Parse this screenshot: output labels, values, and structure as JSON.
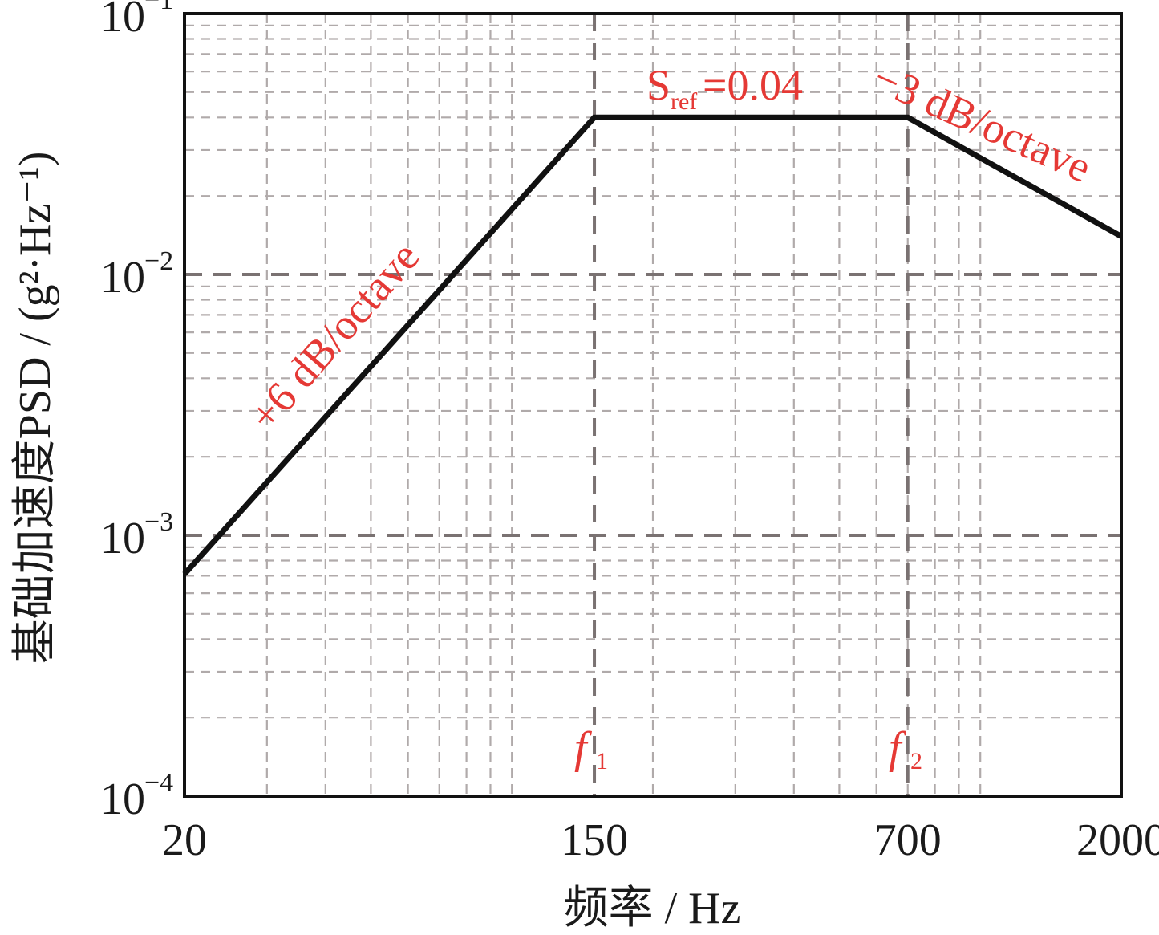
{
  "chart_data": {
    "type": "line",
    "x_scale": "log",
    "y_scale": "log",
    "xlim": [
      20,
      2000
    ],
    "ylim": [
      0.0001,
      0.1
    ],
    "x_ticks": [
      "20",
      "150",
      "700",
      "2000"
    ],
    "x_tick_values": [
      20,
      150,
      700,
      2000
    ],
    "y_ticks": [
      {
        "base": "10",
        "exp": "−4",
        "value": 0.0001
      },
      {
        "base": "10",
        "exp": "−3",
        "value": 0.001
      },
      {
        "base": "10",
        "exp": "−2",
        "value": 0.01
      },
      {
        "base": "10",
        "exp": "−1",
        "value": 0.1
      }
    ],
    "xlabel": "频率 / Hz",
    "ylabel": "基础加速度PSD / (g²·Hz⁻¹)",
    "grid": true,
    "series": [
      {
        "x": [
          20,
          150,
          700,
          2000
        ],
        "y": [
          0.00071,
          0.04,
          0.04,
          0.014
        ]
      }
    ],
    "annotations": {
      "rise": "+6 dB/octave",
      "fall": "−3 dB/octave",
      "sref_main": "S",
      "sref_sub": "ref",
      "sref_value": "=0.04",
      "f1_main": "f",
      "f1_sub": "1",
      "f2_main": "f",
      "f2_sub": "2"
    },
    "colors": {
      "line": "#111111",
      "annotation": "#e53935",
      "grid": "#b0aaaa",
      "major_grid": "#7a7272"
    }
  }
}
